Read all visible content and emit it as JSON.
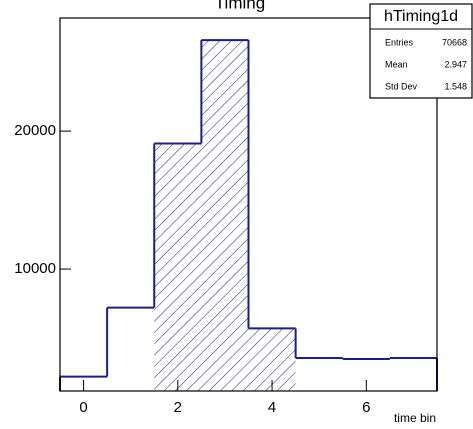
{
  "chart_data": {
    "type": "histogram",
    "title": "Timing",
    "xlabel": "time bin",
    "bins": [
      -0.5,
      0.5,
      1.5,
      2.5,
      3.5,
      4.5,
      5.5,
      6.5,
      7.5
    ],
    "values": [
      2200,
      7200,
      19100,
      26600,
      5700,
      3550,
      3480,
      3550
    ],
    "color": "#1c1c8c",
    "hatch_range": [
      1.5,
      4.5
    ],
    "xlim": [
      -0.5,
      7.5
    ],
    "xticks": [
      0,
      2,
      4,
      6
    ],
    "ylim": [
      1160,
      28200
    ],
    "yticks": [
      10000,
      20000
    ],
    "stats": {
      "title": "hTiming1d",
      "rows": [
        [
          "Entries",
          70668
        ],
        [
          "Mean",
          2.947
        ],
        [
          "Std Dev",
          1.548
        ]
      ]
    }
  }
}
